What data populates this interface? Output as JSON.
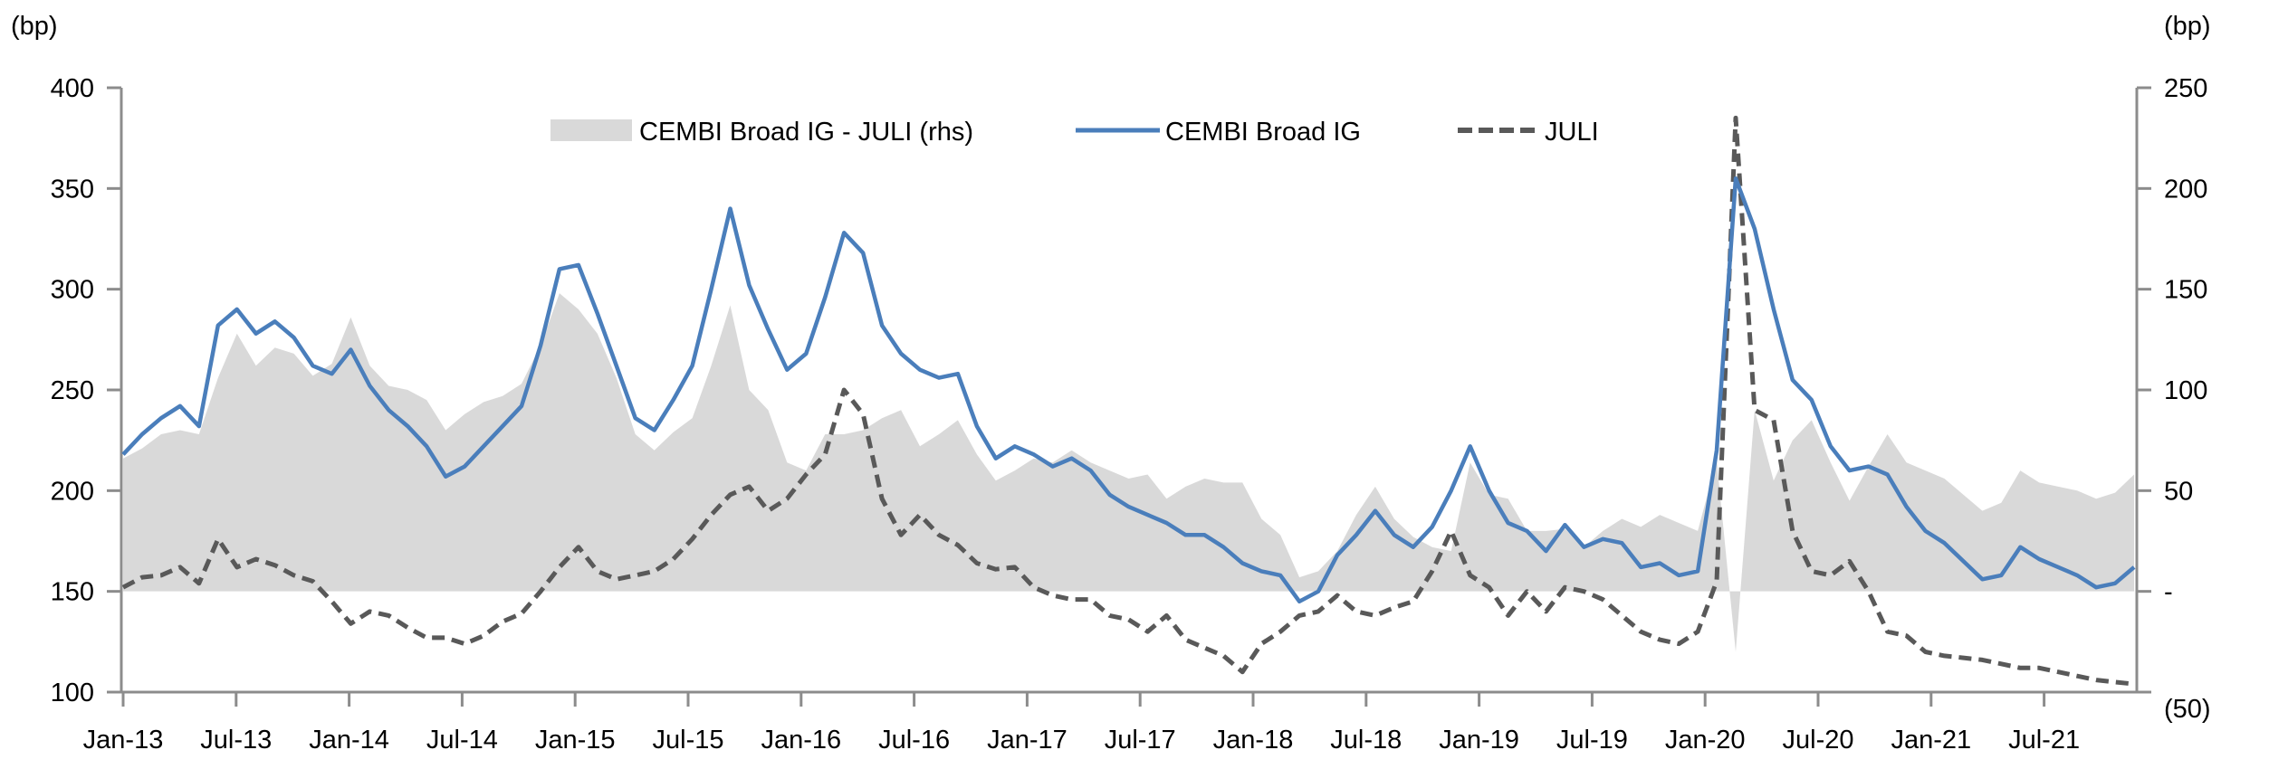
{
  "chart_data": {
    "type": "line",
    "title": "",
    "left_axis": {
      "label": "(bp)",
      "ylim": [
        100,
        400
      ],
      "ticks": [
        "400",
        "350",
        "300",
        "250",
        "200",
        "150",
        "100"
      ],
      "tick_values": [
        400,
        350,
        300,
        250,
        200,
        150,
        100
      ]
    },
    "right_axis": {
      "label": "(bp)",
      "ylim": [
        -50,
        250
      ],
      "ticks": [
        "250",
        "200",
        "150",
        "100",
        "50",
        "-",
        "(50)"
      ],
      "tick_values": [
        250,
        200,
        150,
        100,
        50,
        0,
        -50
      ]
    },
    "x_tick_labels": [
      "Jan-13",
      "Jul-13",
      "Jan-14",
      "Jul-14",
      "Jan-15",
      "Jul-15",
      "Jan-16",
      "Jul-16",
      "Jan-17",
      "Jul-17",
      "Jan-18",
      "Jul-18",
      "Jan-19",
      "Jul-19",
      "Jan-20",
      "Jul-20",
      "Jan-21",
      "Jul-21"
    ],
    "x_start": "2013-01",
    "x_end": "2021-11",
    "frequency": "monthly",
    "legend": {
      "placement": "top-center",
      "entries": [
        {
          "label": "CEMBI Broad IG - JULI (rhs)",
          "style": "area"
        },
        {
          "label": "CEMBI Broad IG",
          "style": "solid-line"
        },
        {
          "label": "JULI",
          "style": "dashed-line"
        }
      ]
    },
    "colors": {
      "spread_area": "#d9d9d9",
      "cembi": "#4a7ebb",
      "juli": "#595959",
      "axis": "#8c8c8c"
    },
    "series": [
      {
        "name": "CEMBI Broad IG",
        "axis": "left",
        "values": [
          218,
          228,
          236,
          242,
          232,
          282,
          290,
          278,
          284,
          276,
          262,
          258,
          270,
          252,
          240,
          232,
          222,
          207,
          212,
          222,
          232,
          242,
          272,
          310,
          312,
          288,
          262,
          236,
          230,
          245,
          262,
          300,
          340,
          302,
          280,
          260,
          268,
          296,
          328,
          318,
          282,
          268,
          260,
          256,
          258,
          232,
          216,
          222,
          218,
          212,
          216,
          210,
          198,
          192,
          188,
          184,
          178,
          178,
          172,
          164,
          160,
          158,
          145,
          150,
          168,
          178,
          190,
          178,
          172,
          182,
          200,
          222,
          200,
          184,
          180,
          170,
          183,
          172,
          176,
          174,
          162,
          164,
          158,
          160,
          220,
          355,
          330,
          290,
          255,
          245,
          222,
          210,
          212,
          208,
          192,
          180,
          174,
          165,
          156,
          158,
          172,
          166,
          162,
          158,
          152,
          154,
          162
        ]
      },
      {
        "name": "JULI",
        "axis": "left",
        "values": [
          152,
          157,
          158,
          162,
          154,
          176,
          162,
          166,
          163,
          158,
          155,
          145,
          134,
          140,
          138,
          132,
          127,
          127,
          124,
          128,
          135,
          139,
          150,
          162,
          172,
          160,
          156,
          158,
          160,
          166,
          176,
          188,
          198,
          202,
          190,
          196,
          208,
          218,
          250,
          238,
          196,
          178,
          188,
          178,
          173,
          164,
          161,
          162,
          152,
          148,
          146,
          146,
          138,
          136,
          130,
          138,
          126,
          122,
          118,
          110,
          124,
          130,
          138,
          140,
          148,
          140,
          138,
          142,
          145,
          160,
          180,
          158,
          152,
          138,
          150,
          140,
          152,
          150,
          146,
          138,
          130,
          126,
          124,
          130,
          155,
          385,
          240,
          235,
          180,
          160,
          158,
          165,
          150,
          130,
          128,
          120,
          118,
          117,
          116,
          114,
          112,
          112,
          110,
          108,
          106,
          105,
          104
        ]
      },
      {
        "name": "CEMBI Broad IG - JULI (rhs)",
        "axis": "right",
        "values": [
          66,
          71,
          78,
          80,
          78,
          106,
          128,
          112,
          121,
          118,
          107,
          113,
          136,
          112,
          102,
          100,
          95,
          80,
          88,
          94,
          97,
          103,
          122,
          148,
          140,
          128,
          106,
          78,
          70,
          79,
          86,
          112,
          142,
          100,
          90,
          64,
          60,
          78,
          78,
          80,
          86,
          90,
          72,
          78,
          85,
          68,
          55,
          60,
          66,
          64,
          70,
          64,
          60,
          56,
          58,
          46,
          52,
          56,
          54,
          54,
          36,
          28,
          7,
          10,
          20,
          38,
          52,
          36,
          27,
          22,
          20,
          64,
          48,
          46,
          30,
          30,
          31,
          22,
          30,
          36,
          32,
          38,
          34,
          30,
          65,
          -30,
          90,
          55,
          75,
          85,
          64,
          45,
          62,
          78,
          64,
          60,
          56,
          48,
          40,
          44,
          60,
          54,
          52,
          50,
          46,
          49,
          58
        ]
      }
    ]
  }
}
